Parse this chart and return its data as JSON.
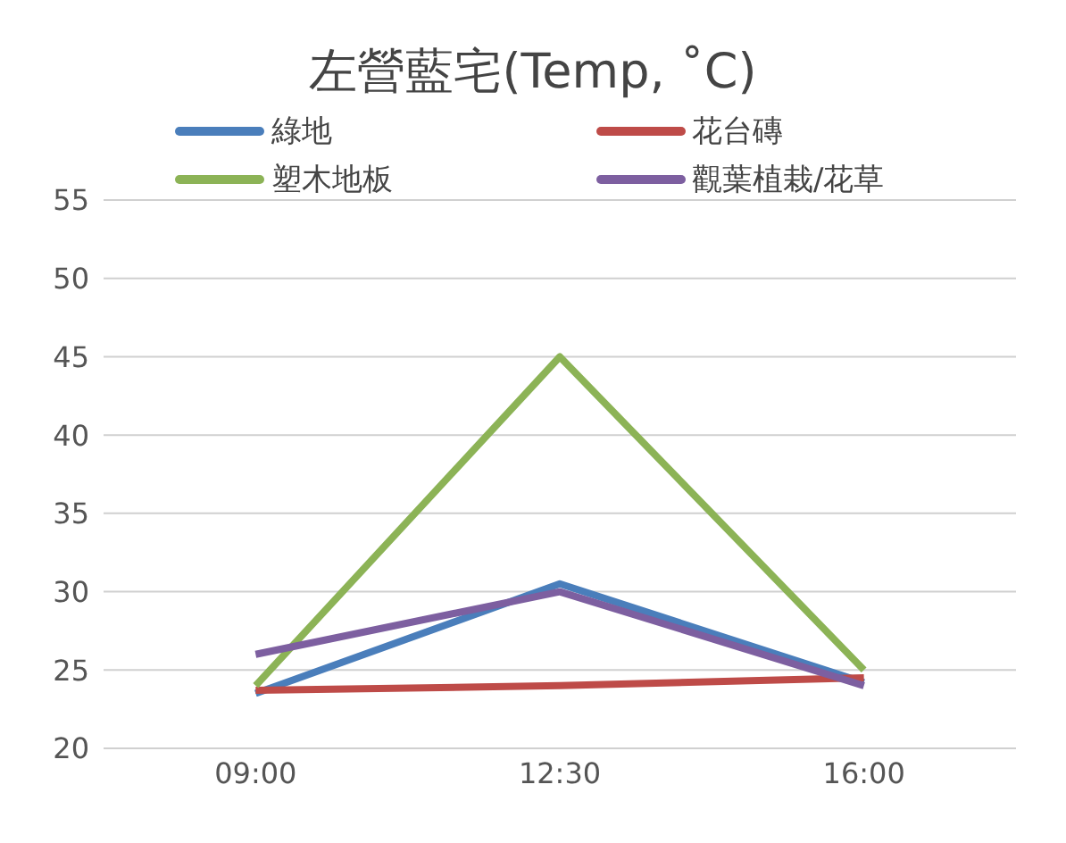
{
  "chart_data": {
    "type": "line",
    "title": "左營藍宅(Temp, ˚C)",
    "categories": [
      "09:00",
      "12:30",
      "16:00"
    ],
    "series": [
      {
        "name": "綠地",
        "color": "#4a7ebb",
        "values": [
          23.5,
          30.5,
          24.2
        ]
      },
      {
        "name": "花台磚",
        "color": "#be4b48",
        "values": [
          23.7,
          24,
          24.5
        ]
      },
      {
        "name": "塑木地板",
        "color": "#8cb356",
        "values": [
          24,
          45,
          25
        ]
      },
      {
        "name": "觀葉植栽/花草",
        "color": "#7d5fa0",
        "values": [
          26,
          30,
          24
        ]
      }
    ],
    "ylim": [
      20,
      55
    ],
    "yticks": [
      20,
      25,
      30,
      35,
      40,
      45,
      50,
      55
    ],
    "grid": "y",
    "legend": "top",
    "marker": "none",
    "line_style": "solid"
  }
}
